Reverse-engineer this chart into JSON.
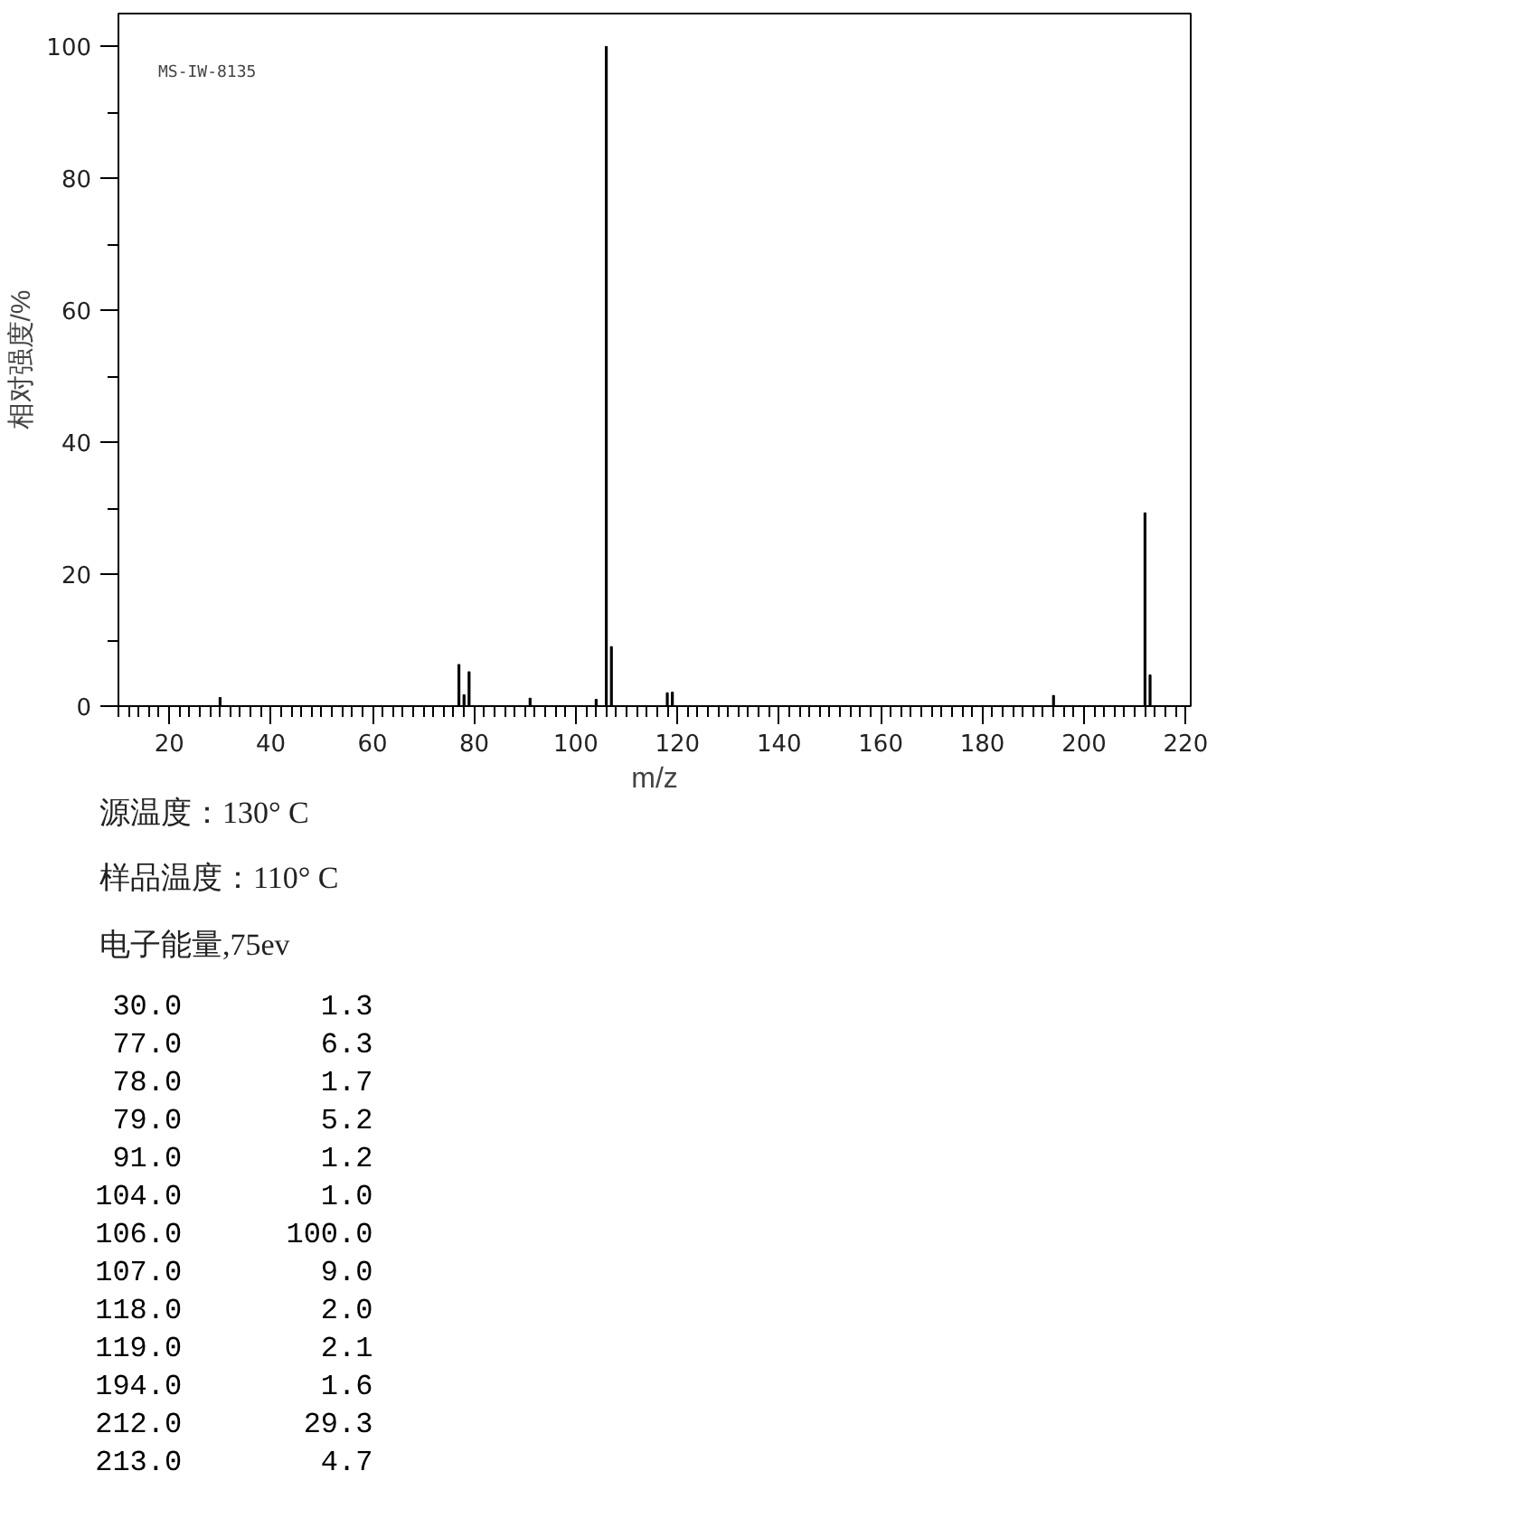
{
  "chart_data": {
    "type": "bar",
    "xlabel": "m/z",
    "ylabel": "相对强度/%",
    "x": [
      30,
      77,
      78,
      79,
      91,
      104,
      106,
      107,
      118,
      119,
      194,
      212,
      213
    ],
    "values": [
      1.3,
      6.3,
      1.7,
      5.2,
      1.2,
      1.0,
      100.0,
      9.0,
      2.0,
      2.1,
      1.6,
      29.3,
      4.7
    ],
    "color": "#000000",
    "xlim": [
      10,
      221
    ],
    "ylim": [
      0,
      105
    ],
    "xticks": [
      {
        "value": 10,
        "label": null
      },
      {
        "value": 12,
        "label": null
      },
      {
        "value": 14,
        "label": null
      },
      {
        "value": 16,
        "label": null
      },
      {
        "value": 18,
        "label": null
      },
      20,
      {
        "value": 22,
        "label": null
      },
      {
        "value": 24,
        "label": null
      },
      {
        "value": 26,
        "label": null
      },
      {
        "value": 28,
        "label": null
      },
      {
        "value": 30,
        "label": null
      },
      {
        "value": 32,
        "label": null
      },
      {
        "value": 34,
        "label": null
      },
      {
        "value": 36,
        "label": null
      },
      {
        "value": 38,
        "label": null
      },
      40,
      {
        "value": 42,
        "label": null
      },
      {
        "value": 44,
        "label": null
      },
      {
        "value": 46,
        "label": null
      },
      {
        "value": 48,
        "label": null
      },
      {
        "value": 50,
        "label": null
      },
      {
        "value": 52,
        "label": null
      },
      {
        "value": 54,
        "label": null
      },
      {
        "value": 56,
        "label": null
      },
      {
        "value": 58,
        "label": null
      },
      60,
      {
        "value": 62,
        "label": null
      },
      {
        "value": 64,
        "label": null
      },
      {
        "value": 66,
        "label": null
      },
      {
        "value": 68,
        "label": null
      },
      {
        "value": 70,
        "label": null
      },
      {
        "value": 72,
        "label": null
      },
      {
        "value": 74,
        "label": null
      },
      {
        "value": 76,
        "label": null
      },
      {
        "value": 78,
        "label": null
      },
      80,
      {
        "value": 82,
        "label": null
      },
      {
        "value": 84,
        "label": null
      },
      {
        "value": 86,
        "label": null
      },
      {
        "value": 88,
        "label": null
      },
      {
        "value": 90,
        "label": null
      },
      {
        "value": 92,
        "label": null
      },
      {
        "value": 94,
        "label": null
      },
      {
        "value": 96,
        "label": null
      },
      {
        "value": 98,
        "label": null
      },
      100,
      {
        "value": 102,
        "label": null
      },
      {
        "value": 104,
        "label": null
      },
      {
        "value": 106,
        "label": null
      },
      {
        "value": 108,
        "label": null
      },
      {
        "value": 110,
        "label": null
      },
      {
        "value": 112,
        "label": null
      },
      {
        "value": 114,
        "label": null
      },
      {
        "value": 116,
        "label": null
      },
      {
        "value": 118,
        "label": null
      },
      120,
      {
        "value": 122,
        "label": null
      },
      {
        "value": 124,
        "label": null
      },
      {
        "value": 126,
        "label": null
      },
      {
        "value": 128,
        "label": null
      },
      {
        "value": 130,
        "label": null
      },
      {
        "value": 132,
        "label": null
      },
      {
        "value": 134,
        "label": null
      },
      {
        "value": 136,
        "label": null
      },
      {
        "value": 138,
        "label": null
      },
      140,
      {
        "value": 142,
        "label": null
      },
      {
        "value": 144,
        "label": null
      },
      {
        "value": 146,
        "label": null
      },
      {
        "value": 148,
        "label": null
      },
      {
        "value": 150,
        "label": null
      },
      {
        "value": 152,
        "label": null
      },
      {
        "value": 154,
        "label": null
      },
      {
        "value": 156,
        "label": null
      },
      {
        "value": 158,
        "label": null
      },
      160,
      {
        "value": 162,
        "label": null
      },
      {
        "value": 164,
        "label": null
      },
      {
        "value": 166,
        "label": null
      },
      {
        "value": 168,
        "label": null
      },
      {
        "value": 170,
        "label": null
      },
      {
        "value": 172,
        "label": null
      },
      {
        "value": 174,
        "label": null
      },
      {
        "value": 176,
        "label": null
      },
      {
        "value": 178,
        "label": null
      },
      180,
      {
        "value": 182,
        "label": null
      },
      {
        "value": 184,
        "label": null
      },
      {
        "value": 186,
        "label": null
      },
      {
        "value": 188,
        "label": null
      },
      {
        "value": 190,
        "label": null
      },
      {
        "value": 192,
        "label": null
      },
      {
        "value": 194,
        "label": null
      },
      {
        "value": 196,
        "label": null
      },
      {
        "value": 198,
        "label": null
      },
      200,
      {
        "value": 202,
        "label": null
      },
      {
        "value": 204,
        "label": null
      },
      {
        "value": 206,
        "label": null
      },
      {
        "value": 208,
        "label": null
      },
      {
        "value": 210,
        "label": null
      },
      {
        "value": 212,
        "label": null
      },
      {
        "value": 214,
        "label": null
      },
      {
        "value": 216,
        "label": null
      },
      {
        "value": 218,
        "label": null
      },
      220
    ],
    "yticks": [
      0,
      {
        "value": 10,
        "label": null
      },
      20,
      {
        "value": 30,
        "label": null
      },
      40,
      {
        "value": 50,
        "label": null
      },
      60,
      {
        "value": 70,
        "label": null
      },
      80,
      {
        "value": 90,
        "label": null
      },
      100
    ],
    "annotations": [
      "MS-IW-8135",
      "源温度：130° C",
      "样品温度：110° C",
      "电子能量,75ev",
      "  30.0        1.3",
      "  77.0        6.3",
      "  78.0        1.7",
      "  79.0        5.2",
      "  91.0        1.2",
      " 104.0        1.0",
      " 106.0      100.0",
      " 107.0        9.0",
      " 118.0        2.0",
      " 119.0        2.1",
      " 194.0        1.6",
      " 212.0       29.3",
      " 213.0        4.7"
    ]
  }
}
